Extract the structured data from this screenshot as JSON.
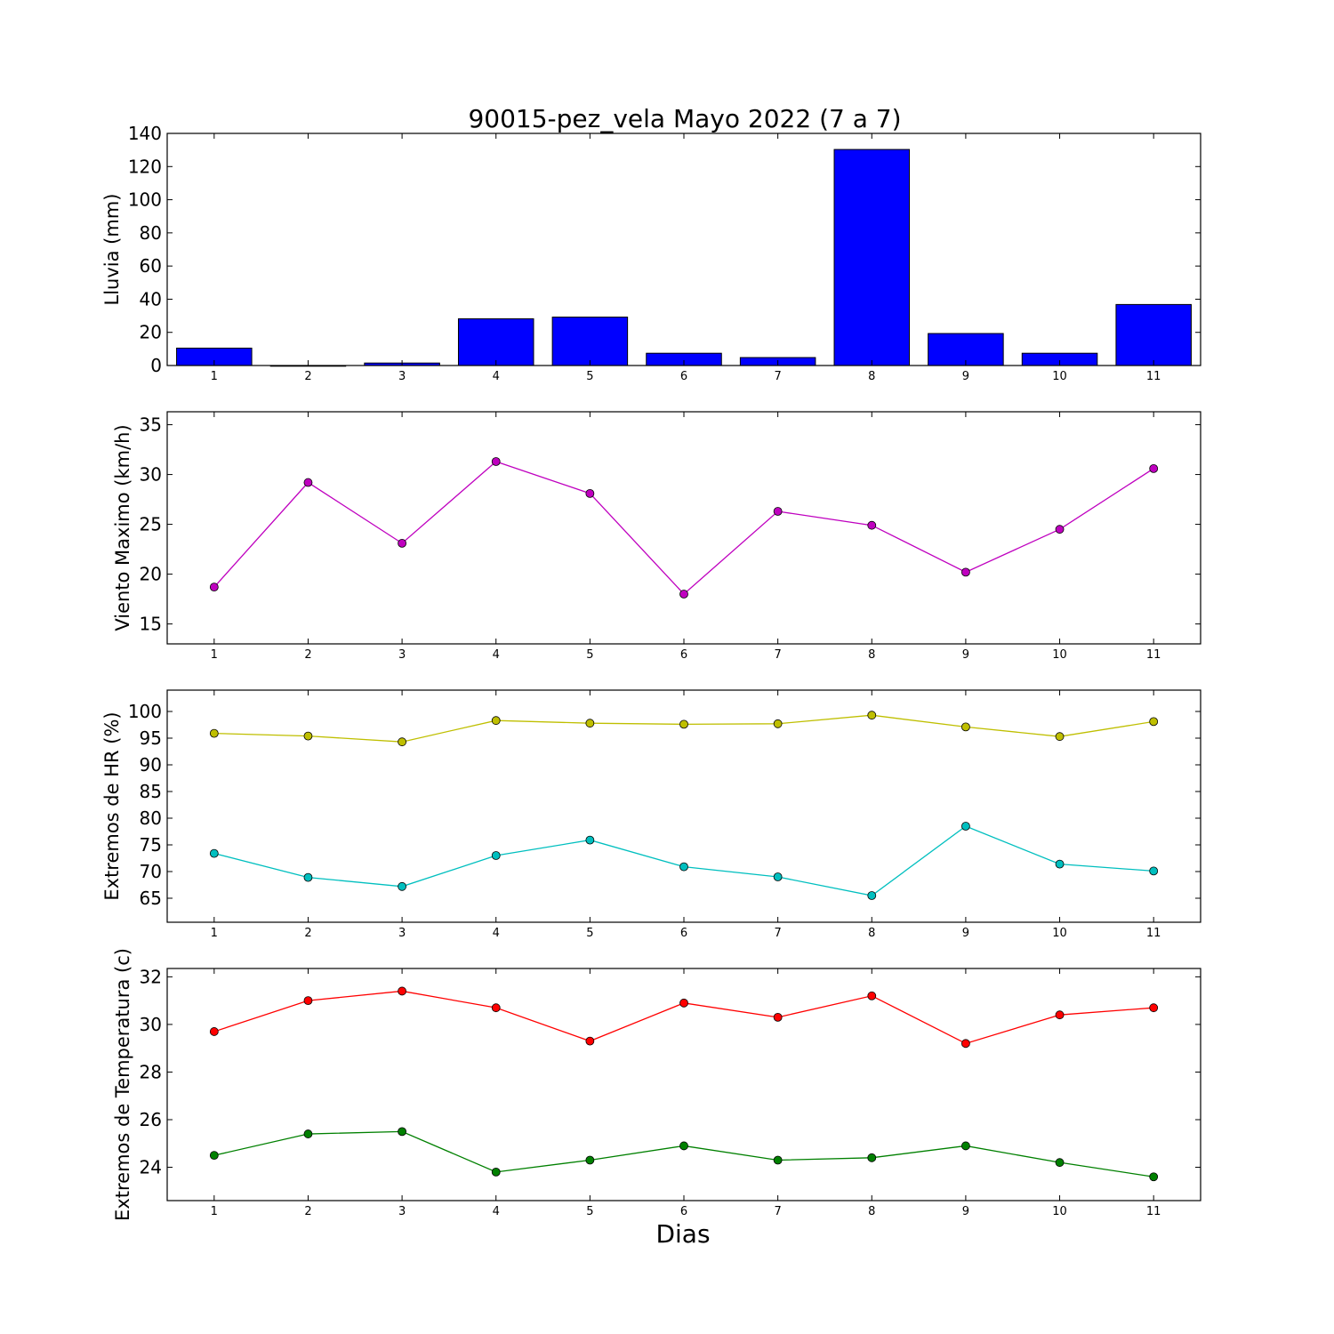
{
  "figure": {
    "title": "90015-pez_vela Mayo 2022  (7 a 7)",
    "xlabel": "Dias"
  },
  "chart_data": [
    {
      "type": "bar",
      "ylabel": "Lluvia (mm)",
      "categories": [
        "1",
        "2",
        "3",
        "4",
        "5",
        "6",
        "7",
        "8",
        "9",
        "10",
        "11"
      ],
      "values": [
        10.5,
        0,
        1.5,
        28.2,
        29.2,
        7.4,
        4.8,
        130.3,
        19.3,
        7.4,
        36.8
      ],
      "ylim": [
        0,
        140
      ],
      "yticks": [
        0,
        20,
        40,
        60,
        80,
        100,
        120,
        140
      ],
      "color": "#0000ff",
      "grid": false
    },
    {
      "type": "line",
      "ylabel": "Viento Maximo (km/h)",
      "x": [
        1,
        2,
        3,
        4,
        5,
        6,
        7,
        8,
        9,
        10,
        11
      ],
      "series": [
        {
          "values": [
            18.7,
            29.2,
            23.1,
            31.3,
            28.1,
            18.0,
            26.3,
            24.9,
            20.2,
            24.5,
            30.6
          ],
          "color": "#bf00bf"
        }
      ],
      "ylim": [
        13,
        36.3
      ],
      "yticks": [
        15,
        20,
        25,
        30,
        35
      ],
      "xlim": [
        0.5,
        11.5
      ],
      "grid": false
    },
    {
      "type": "line",
      "ylabel": "Extremos de HR (%)",
      "x": [
        1,
        2,
        3,
        4,
        5,
        6,
        7,
        8,
        9,
        10,
        11
      ],
      "series": [
        {
          "values": [
            95.9,
            95.4,
            94.3,
            98.3,
            97.8,
            97.6,
            97.7,
            99.3,
            97.1,
            95.3,
            98.1
          ],
          "color": "#bfbf00"
        },
        {
          "values": [
            73.4,
            68.9,
            67.2,
            73.0,
            75.9,
            70.9,
            69.0,
            65.5,
            78.5,
            71.4,
            70.1
          ],
          "color": "#00bfbf"
        }
      ],
      "ylim": [
        60.5,
        104
      ],
      "yticks": [
        65,
        70,
        75,
        80,
        85,
        90,
        95,
        100
      ],
      "xlim": [
        0.5,
        11.5
      ],
      "grid": false
    },
    {
      "type": "line",
      "ylabel": "Extremos de Temperatura (c)",
      "x": [
        1,
        2,
        3,
        4,
        5,
        6,
        7,
        8,
        9,
        10,
        11
      ],
      "series": [
        {
          "values": [
            29.7,
            31.0,
            31.4,
            30.7,
            29.3,
            30.9,
            30.3,
            31.2,
            29.2,
            30.4,
            30.7
          ],
          "color": "#ff0000"
        },
        {
          "values": [
            24.5,
            25.4,
            25.5,
            23.8,
            24.3,
            24.9,
            24.3,
            24.4,
            24.9,
            24.2,
            23.6
          ],
          "color": "#008000"
        }
      ],
      "ylim": [
        22.6,
        32.35
      ],
      "yticks": [
        24,
        26,
        28,
        30,
        32
      ],
      "xlim": [
        0.5,
        11.5
      ],
      "grid": false
    }
  ]
}
